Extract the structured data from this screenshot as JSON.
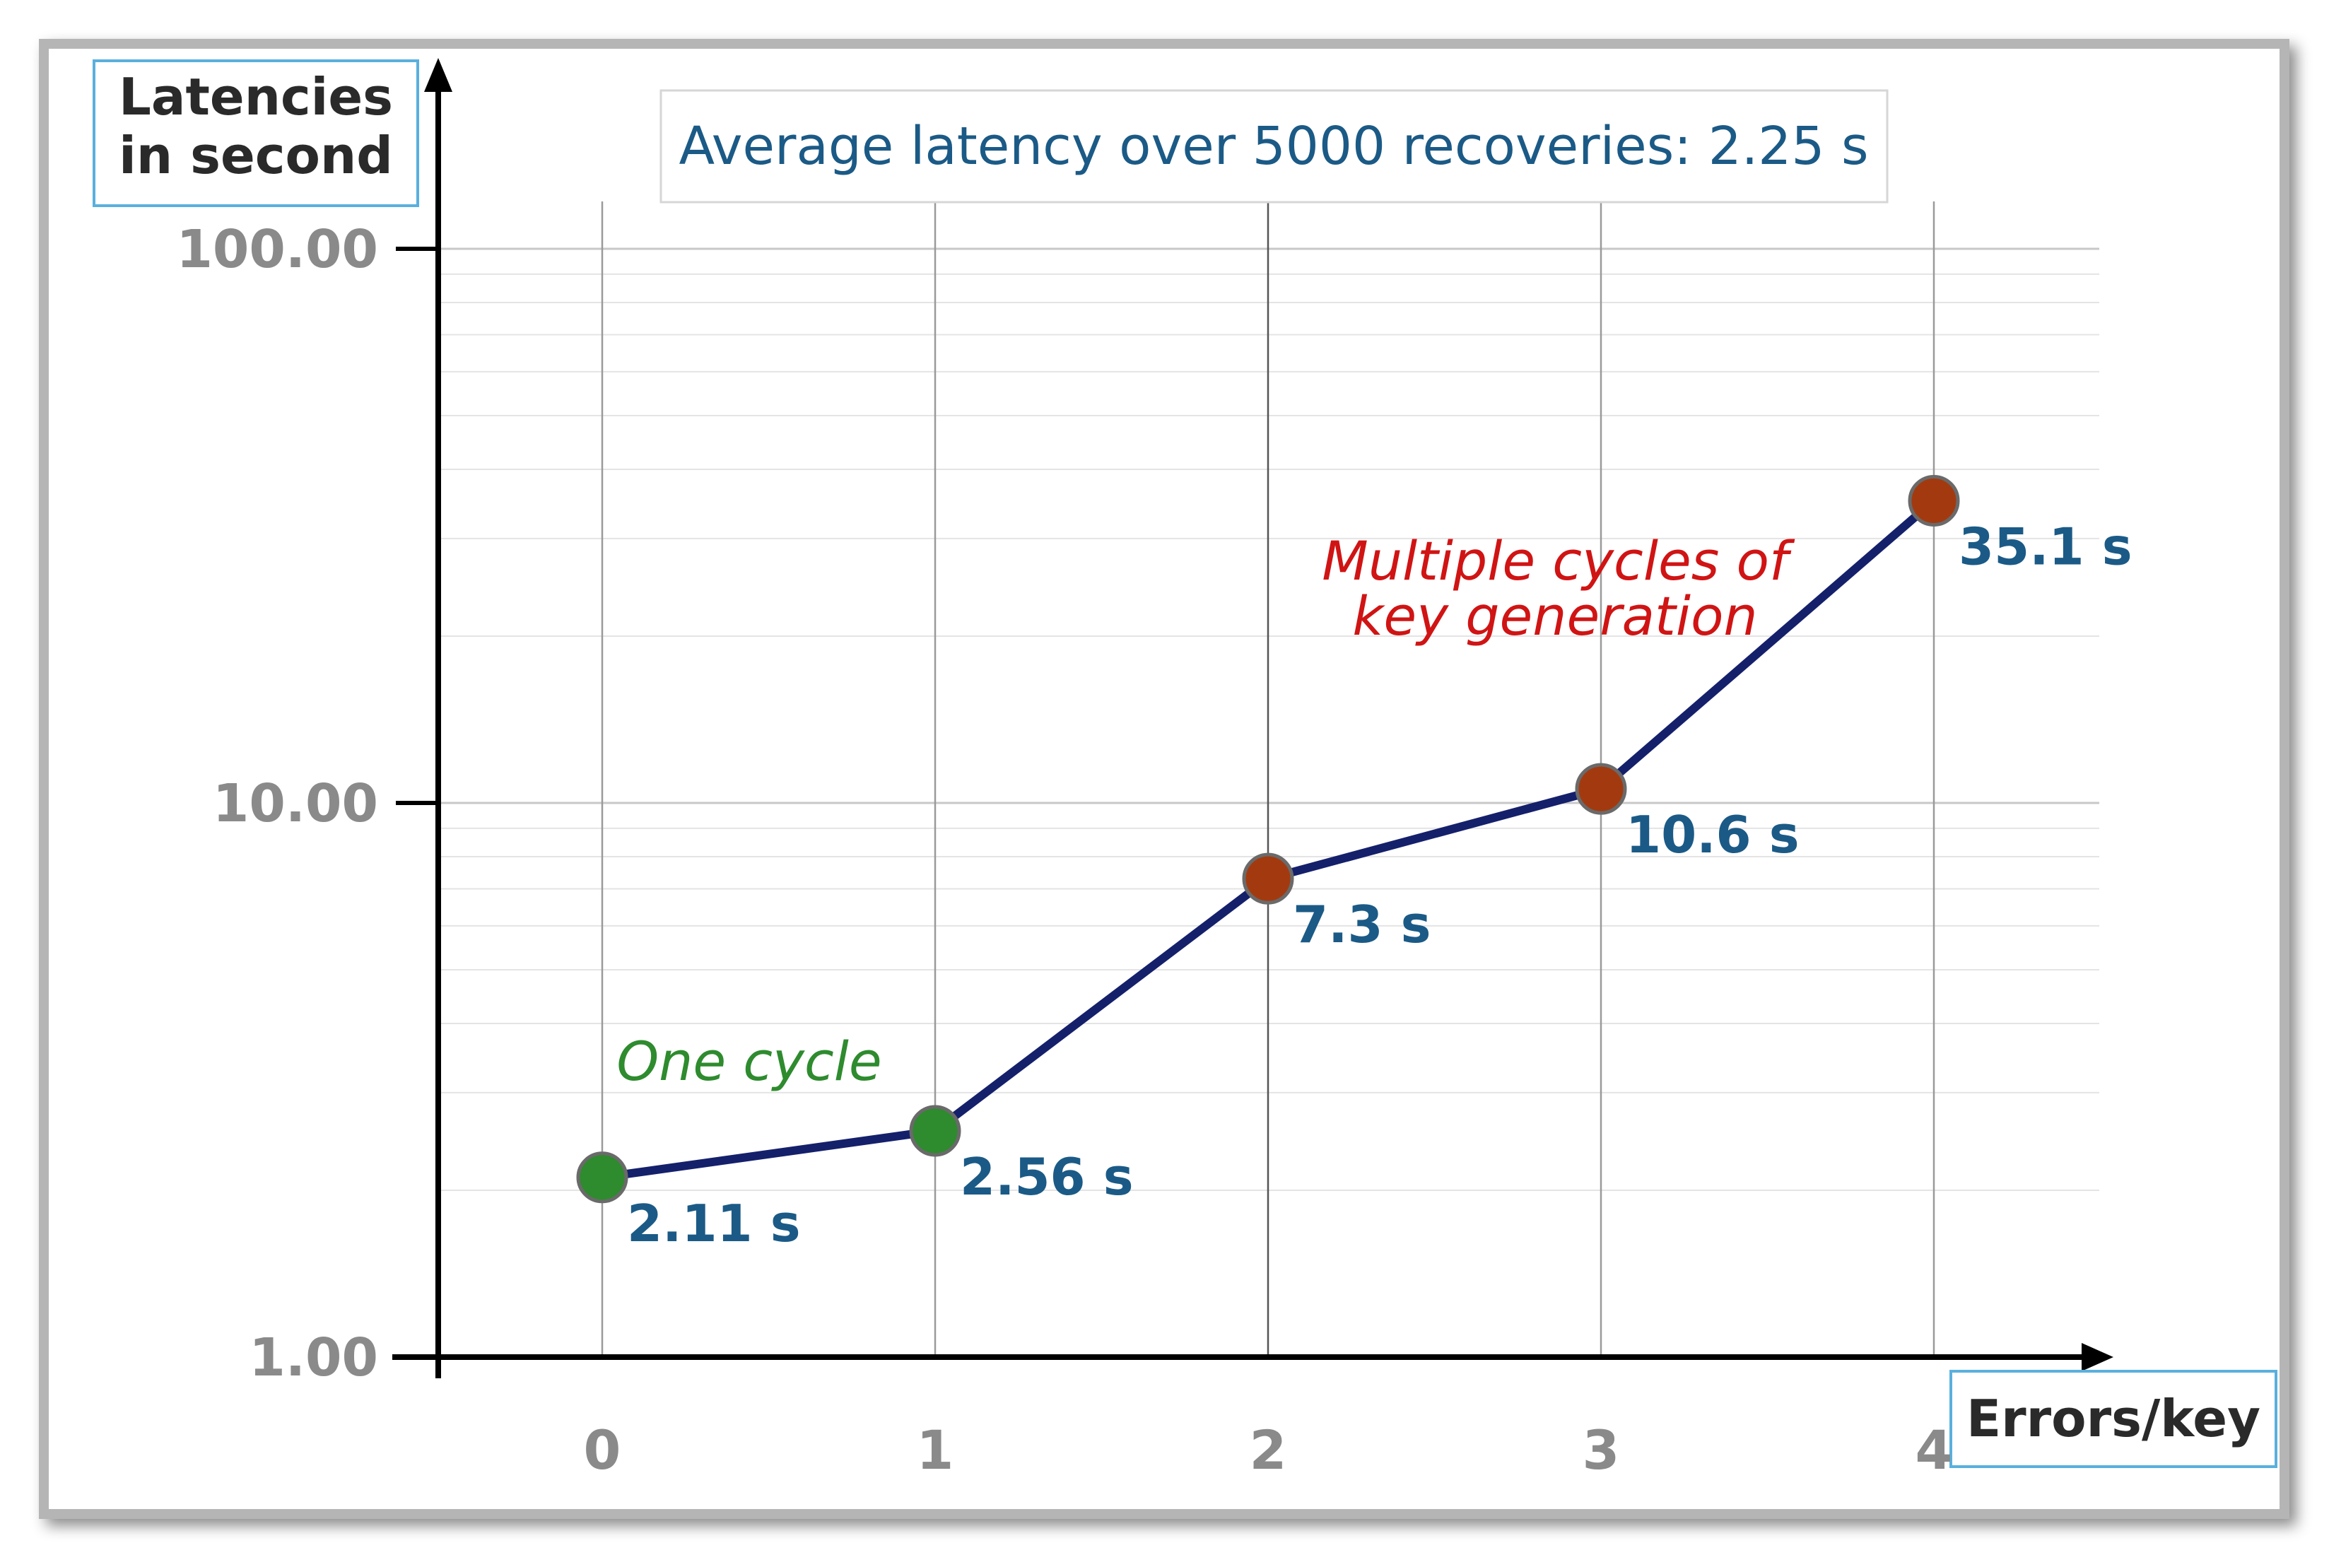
{
  "chart_data": {
    "type": "line",
    "yscale": "log",
    "ylim": [
      1,
      100
    ],
    "ytick_labels": [
      "1.00",
      "10.00",
      "100.00"
    ],
    "ytick_values": [
      1,
      10,
      100
    ],
    "categories": [
      "0",
      "1",
      "2",
      "3",
      "4"
    ],
    "x": [
      0,
      1,
      2,
      3,
      4
    ],
    "values": [
      2.11,
      2.56,
      7.3,
      10.6,
      35.1
    ],
    "data_labels": [
      "2.11 s",
      "2.56 s",
      "7.3 s",
      "10.6 s",
      "35.1 s"
    ],
    "point_colors": [
      "#2e8b2e",
      "#2e8b2e",
      "#a33a0f",
      "#a33a0f",
      "#a33a0f"
    ],
    "line_color": "#15206b",
    "ylabel_line1": "Latencies",
    "ylabel_line2": "in second",
    "xlabel": "Errors/key",
    "title": "Average latency over 5000 recoveries: 2.25 s",
    "annotations": {
      "one_cycle": "One cycle",
      "multi_line1": "Multiple cycles of",
      "multi_line2": "key generation"
    },
    "colors": {
      "label_blue": "#1b5a86",
      "tick_gray": "#8a8a8a",
      "one_cycle_green": "#2e8b2e",
      "multi_red": "#d01414",
      "box_border": "#5ab0dd"
    }
  }
}
